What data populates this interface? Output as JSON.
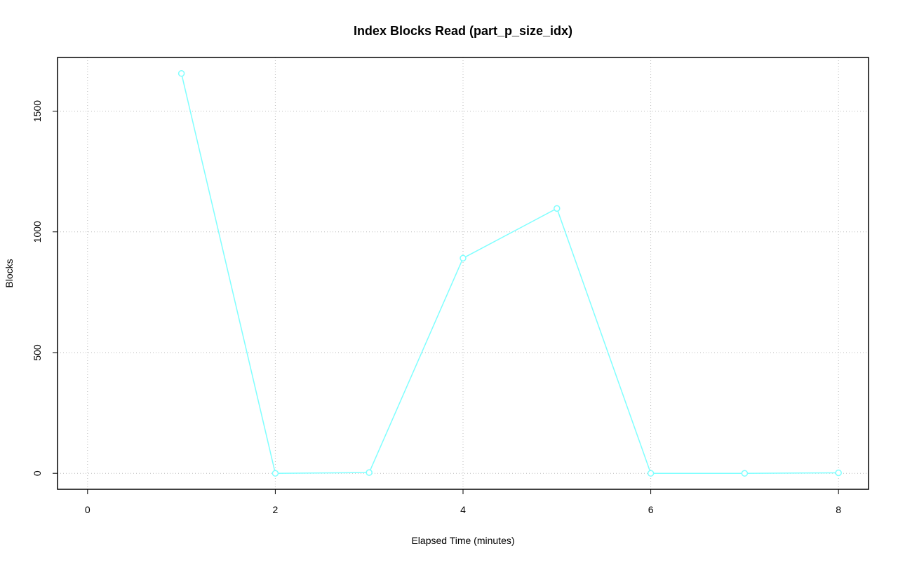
{
  "chart_data": {
    "type": "line",
    "title": "Index Blocks Read (part_p_size_idx)",
    "xlabel": "Elapsed Time (minutes)",
    "ylabel": "Blocks",
    "x": [
      1,
      2,
      3,
      4,
      5,
      6,
      7,
      8
    ],
    "series": [
      {
        "name": "part_p_size_idx",
        "color": "#80ffff",
        "values": [
          1656,
          0,
          3,
          891,
          1097,
          0,
          0,
          2
        ]
      }
    ],
    "xlim": [
      -0.32,
      8.32
    ],
    "ylim": [
      -66.2,
      1722.2
    ],
    "xticks": [
      0,
      2,
      4,
      6,
      8
    ],
    "yticks": [
      0,
      500,
      1000,
      1500
    ],
    "grid": true
  }
}
